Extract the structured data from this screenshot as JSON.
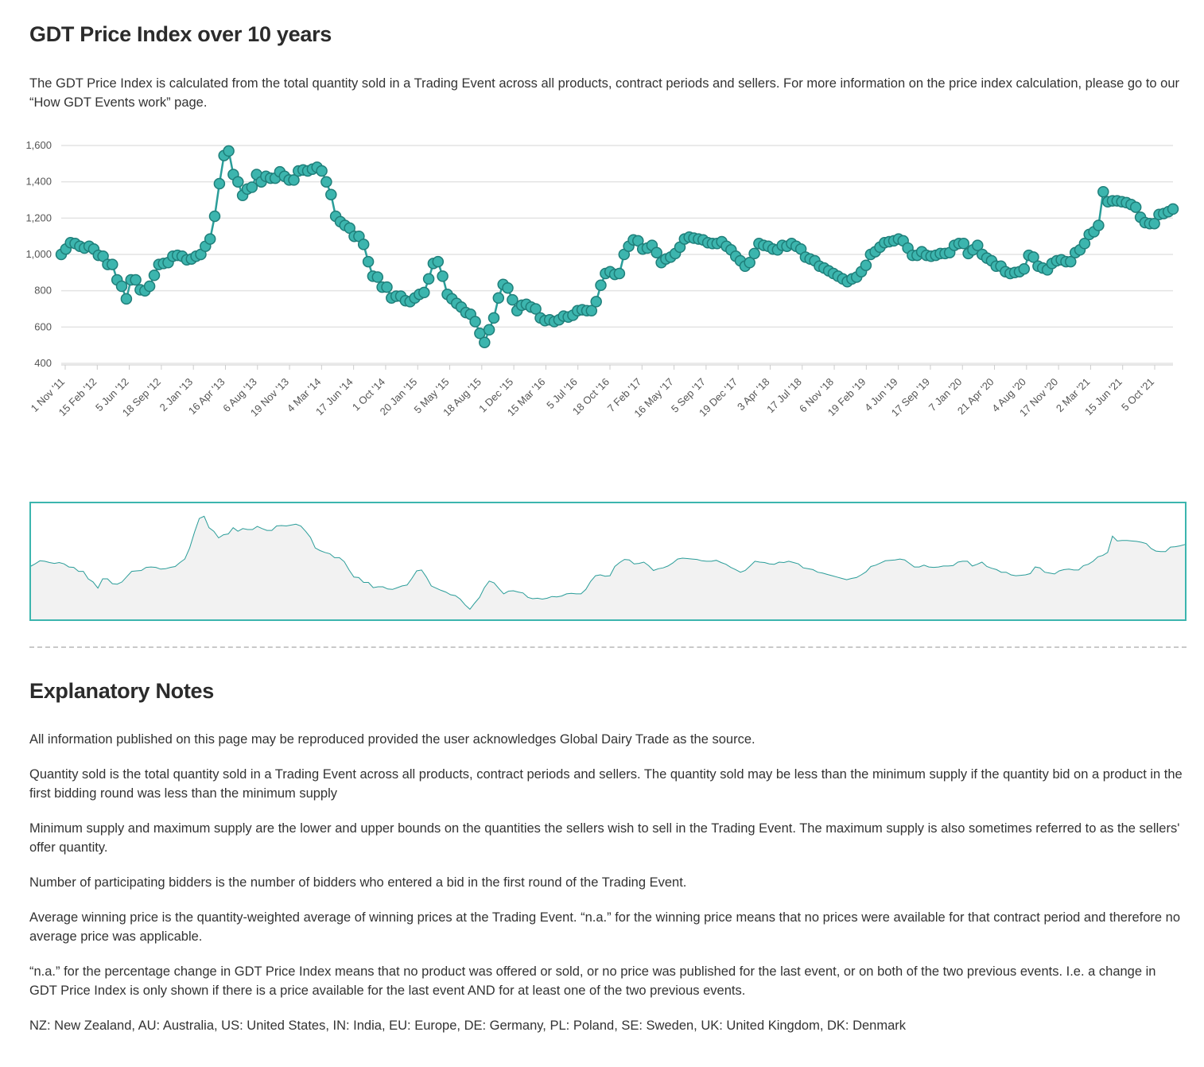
{
  "page": {
    "title": "GDT Price Index over 10 years",
    "intro": "The GDT Price Index is calculated from the total quantity sold in a Trading Event across all products, contract periods and sellers. For more information on the price index calculation, please go to our “How GDT Events work” page.",
    "notes_title": "Explanatory Notes",
    "notes": [
      "All information published on this page may be reproduced provided the user acknowledges Global Dairy Trade as the source.",
      "Quantity sold is the total quantity sold in a Trading Event across all products, contract periods and sellers. The quantity sold may be less than the minimum supply if the quantity bid on a product in the first bidding round was less than the minimum supply",
      "Minimum supply and maximum supply are the lower and upper bounds on the quantities the sellers wish to sell in the Trading Event. The maximum supply is also sometimes referred to as the sellers' offer quantity.",
      "Number of participating bidders is the number of bidders who entered a bid in the first round of the Trading Event.",
      "Average winning price is the quantity-weighted average of winning prices at the Trading Event.  “n.a.” for the winning price means that no prices were available for that contract period and therefore no average price was applicable.",
      "“n.a.” for the percentage change in GDT Price Index means that no product was offered or sold, or no price was published for the last event, or on both of the two previous events.  I.e. a change in GDT Price Index is only shown if there is a price available for the last event AND for at least one of the two previous events.",
      "NZ: New Zealand, AU: Australia, US: United States, IN: India, EU: Europe, DE: Germany, PL: Poland, SE: Sweden, UK: United Kingdom, DK: Denmark"
    ]
  },
  "colors": {
    "line": "#2a9d99",
    "marker_fill": "#3cb5ae",
    "marker_stroke": "#1f7f7a",
    "navigator_border": "#3cb5ae",
    "navigator_fill": "#f2f2f2",
    "grid": "#e3e3e3"
  },
  "chart_data": {
    "type": "line",
    "title": "",
    "xlabel": "",
    "ylabel": "",
    "ylim": [
      400,
      1600
    ],
    "y_ticks": [
      "400",
      "600",
      "800",
      "1,000",
      "1,200",
      "1,400",
      "1,600"
    ],
    "y_tick_values": [
      400,
      600,
      800,
      1000,
      1200,
      1400,
      1600
    ],
    "x_ticks": [
      "1 Nov '11",
      "15 Feb '12",
      "5 Jun '12",
      "18 Sep '12",
      "2 Jan '13",
      "16 Apr '13",
      "6 Aug '13",
      "19 Nov '13",
      "4 Mar '14",
      "17 Jun '14",
      "1 Oct '14",
      "20 Jan '15",
      "5 May '15",
      "18 Aug '15",
      "1 Dec '15",
      "15 Mar '16",
      "5 Jul '16",
      "18 Oct '16",
      "7 Feb '17",
      "16 May '17",
      "5 Sep '17",
      "19 Dec '17",
      "3 Apr '18",
      "17 Jul '18",
      "6 Nov '18",
      "19 Feb '19",
      "4 Jun '19",
      "17 Sep '19",
      "7 Jan '20",
      "21 Apr '20",
      "4 Aug '20",
      "17 Nov '20",
      "2 Mar '21",
      "15 Jun '21",
      "5 Oct '21"
    ],
    "series": [
      {
        "values": [
          1000,
          1030,
          1065,
          1060,
          1045,
          1035,
          1045,
          1030,
          995,
          990,
          945,
          945,
          860,
          825,
          755,
          860,
          860,
          805,
          800,
          825,
          885,
          945,
          950,
          955,
          990,
          995,
          990,
          970,
          975,
          990,
          1000,
          1045,
          1085,
          1210,
          1390,
          1545,
          1570,
          1440,
          1400,
          1325,
          1360,
          1370,
          1440,
          1400,
          1430,
          1420,
          1420,
          1455,
          1430,
          1410,
          1410,
          1460,
          1465,
          1460,
          1470,
          1480,
          1460,
          1400,
          1330,
          1210,
          1180,
          1160,
          1145,
          1100,
          1100,
          1055,
          960,
          880,
          875,
          820,
          820,
          760,
          770,
          770,
          745,
          740,
          760,
          780,
          790,
          865,
          950,
          960,
          880,
          780,
          755,
          730,
          710,
          680,
          670,
          630,
          565,
          515,
          585,
          650,
          760,
          835,
          815,
          750,
          690,
          720,
          725,
          710,
          700,
          650,
          635,
          640,
          630,
          640,
          660,
          655,
          665,
          690,
          695,
          690,
          690,
          740,
          830,
          895,
          905,
          890,
          895,
          1000,
          1045,
          1080,
          1075,
          1030,
          1035,
          1050,
          1010,
          955,
          975,
          985,
          1005,
          1040,
          1085,
          1095,
          1090,
          1085,
          1080,
          1065,
          1060,
          1060,
          1070,
          1045,
          1025,
          990,
          965,
          935,
          955,
          1005,
          1060,
          1050,
          1045,
          1030,
          1025,
          1050,
          1045,
          1060,
          1045,
          1030,
          985,
          975,
          965,
          935,
          925,
          910,
          895,
          880,
          865,
          850,
          865,
          875,
          905,
          940,
          1000,
          1015,
          1040,
          1065,
          1070,
          1075,
          1085,
          1075,
          1035,
          995,
          995,
          1015,
          995,
          990,
          995,
          1005,
          1005,
          1010,
          1050,
          1060,
          1060,
          1005,
          1025,
          1050,
          1000,
          980,
          965,
          935,
          935,
          905,
          895,
          900,
          905,
          920,
          995,
          985,
          935,
          925,
          915,
          950,
          965,
          970,
          960,
          960,
          1010,
          1025,
          1060,
          1110,
          1125,
          1160,
          1345,
          1290,
          1295,
          1295,
          1290,
          1285,
          1275,
          1260,
          1205,
          1175,
          1170,
          1170,
          1220,
          1225,
          1235,
          1250
        ]
      }
    ]
  }
}
